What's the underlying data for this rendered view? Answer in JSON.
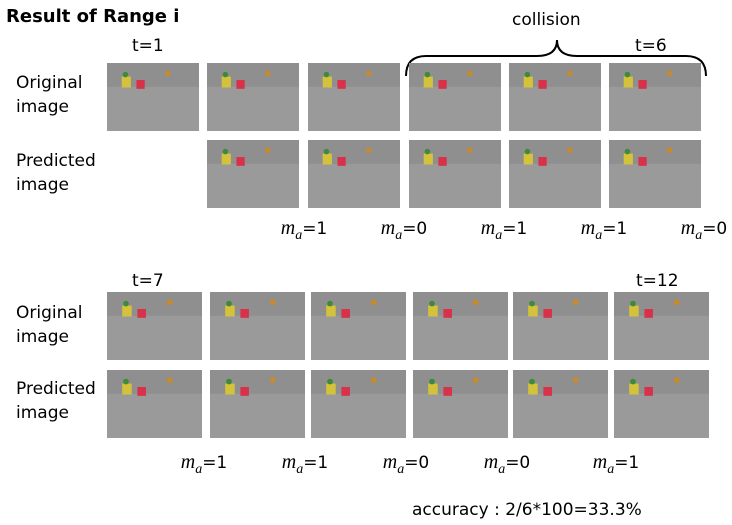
{
  "title": "Result of Range i",
  "top": {
    "start_label": "t=1",
    "end_label": "t=6",
    "collision_label": "collision",
    "row_labels": [
      [
        "Original",
        "image"
      ],
      [
        "Predicted",
        "image"
      ]
    ],
    "m_labels": [
      {
        "var": "m",
        "sub": "a",
        "value": "=1"
      },
      {
        "var": "m",
        "sub": "a",
        "value": "=0"
      },
      {
        "var": "m",
        "sub": "a",
        "value": "=1"
      },
      {
        "var": "m",
        "sub": "a",
        "value": "=1"
      },
      {
        "var": "m",
        "sub": "a",
        "value": "=0"
      }
    ]
  },
  "bottom": {
    "start_label": "t=7",
    "end_label": "t=12",
    "row_labels": [
      [
        "Original",
        "image"
      ],
      [
        "Predicted",
        "image"
      ]
    ],
    "m_labels": [
      {
        "var": "m",
        "sub": "a",
        "value": "=1"
      },
      {
        "var": "m",
        "sub": "a",
        "value": "=1"
      },
      {
        "var": "m",
        "sub": "a",
        "value": "=0"
      },
      {
        "var": "m",
        "sub": "a",
        "value": "=0"
      },
      {
        "var": "m",
        "sub": "a",
        "value": "=1"
      }
    ]
  },
  "accuracy": "accuracy : 2/6*100=33.3%"
}
